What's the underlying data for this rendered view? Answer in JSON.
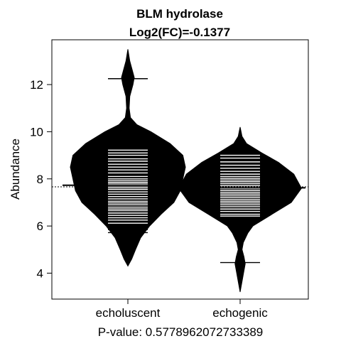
{
  "chart_data": {
    "type": "beanplot",
    "title": "BLM hydrolase",
    "subtitle": "Log2(FC)=-0.1377",
    "xlabel": "",
    "ylabel": "Abundance",
    "footer": "P-value: 0.5778962072733389",
    "ylim": [
      2.9,
      13.9
    ],
    "yticks": [
      4,
      6,
      8,
      10,
      12
    ],
    "categories": [
      "echoluscent",
      "echogenic"
    ],
    "overall_mean": 7.66,
    "groups": [
      {
        "name": "echoluscent",
        "mean": 7.73,
        "density": [
          [
            4.3,
            0.0
          ],
          [
            4.6,
            0.03
          ],
          [
            5.0,
            0.06
          ],
          [
            5.5,
            0.1
          ],
          [
            6.0,
            0.17
          ],
          [
            6.5,
            0.26
          ],
          [
            7.0,
            0.36
          ],
          [
            7.5,
            0.41
          ],
          [
            8.0,
            0.43
          ],
          [
            8.5,
            0.45
          ],
          [
            9.0,
            0.43
          ],
          [
            9.5,
            0.33
          ],
          [
            10.0,
            0.18
          ],
          [
            10.3,
            0.07
          ],
          [
            10.6,
            0.02
          ],
          [
            11.0,
            0.01
          ],
          [
            11.5,
            0.015
          ],
          [
            12.0,
            0.04
          ],
          [
            12.3,
            0.05
          ],
          [
            12.6,
            0.035
          ],
          [
            13.0,
            0.015
          ],
          [
            13.5,
            0.0
          ]
        ],
        "points": [
          12.25,
          9.22,
          9.1,
          9.0,
          8.85,
          8.75,
          8.62,
          8.5,
          8.38,
          8.25,
          8.1,
          8.0,
          7.92,
          7.85,
          7.78,
          7.7,
          7.62,
          7.55,
          7.45,
          7.35,
          7.25,
          7.15,
          7.05,
          6.98,
          6.9,
          6.8,
          6.72,
          6.65,
          6.55,
          6.45,
          6.35,
          6.25,
          6.12,
          6.0,
          5.85,
          5.72
        ]
      },
      {
        "name": "echogenic",
        "mean": 7.62,
        "density": [
          [
            3.2,
            0.0
          ],
          [
            3.5,
            0.01
          ],
          [
            3.8,
            0.02
          ],
          [
            4.1,
            0.03
          ],
          [
            4.4,
            0.04
          ],
          [
            4.7,
            0.03
          ],
          [
            5.0,
            0.015
          ],
          [
            5.3,
            0.025
          ],
          [
            5.7,
            0.06
          ],
          [
            6.0,
            0.1
          ],
          [
            6.5,
            0.25
          ],
          [
            7.0,
            0.4
          ],
          [
            7.6,
            0.48
          ],
          [
            8.2,
            0.42
          ],
          [
            8.7,
            0.3
          ],
          [
            9.1,
            0.17
          ],
          [
            9.5,
            0.05
          ],
          [
            9.8,
            0.015
          ],
          [
            10.2,
            0.0
          ]
        ],
        "points": [
          9.0,
          8.88,
          8.72,
          8.58,
          8.45,
          8.32,
          8.2,
          8.1,
          8.02,
          7.95,
          7.88,
          7.8,
          7.72,
          7.65,
          7.58,
          7.5,
          7.42,
          7.35,
          7.28,
          7.2,
          7.12,
          7.05,
          6.98,
          6.9,
          6.82,
          6.72,
          6.62,
          6.5,
          6.42,
          4.45
        ]
      }
    ],
    "colors": {
      "fill": "#000000",
      "points": "#ffffff",
      "line": "#000000"
    }
  }
}
